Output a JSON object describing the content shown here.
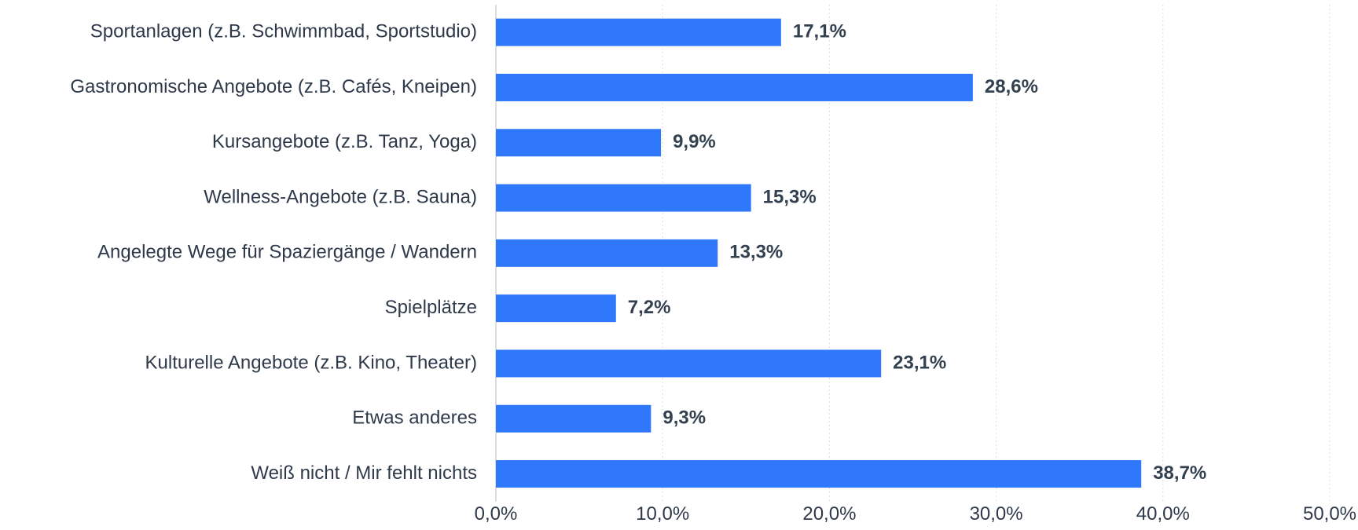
{
  "chart_data": {
    "type": "bar",
    "orientation": "horizontal",
    "categories": [
      "Sportanlagen (z.B. Schwimmbad, Sportstudio)",
      "Gastronomische Angebote (z.B. Cafés, Kneipen)",
      "Kursangebote (z.B. Tanz, Yoga)",
      "Wellness-Angebote (z.B. Sauna)",
      "Angelegte Wege für Spaziergänge / Wandern",
      "Spielplätze",
      "Kulturelle Angebote (z.B. Kino, Theater)",
      "Etwas anderes",
      "Weiß nicht / Mir fehlt nichts"
    ],
    "values": [
      17.1,
      28.6,
      9.9,
      15.3,
      13.3,
      7.2,
      23.1,
      9.3,
      38.7
    ],
    "value_labels": [
      "17,1%",
      "28,6%",
      "9,9%",
      "15,3%",
      "13,3%",
      "7,2%",
      "23,1%",
      "9,3%",
      "38,7%"
    ],
    "color": "#2f78fc",
    "xlim": [
      0,
      50
    ],
    "xticks": [
      {
        "value": 0,
        "label": "0,0%"
      },
      {
        "value": 10,
        "label": "10,0%"
      },
      {
        "value": 20,
        "label": "20,0%"
      },
      {
        "value": 30,
        "label": "30,0%"
      },
      {
        "value": 40,
        "label": "40,0%"
      },
      {
        "value": 50,
        "label": "50,0%"
      }
    ],
    "grid": true
  }
}
